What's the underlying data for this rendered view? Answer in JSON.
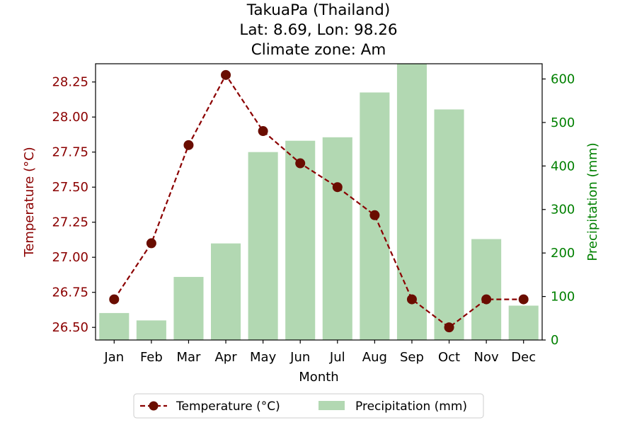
{
  "chart_data": {
    "type": "bar+line",
    "title_lines": [
      "TakuaPa (Thailand)",
      "Lat: 8.69, Lon: 98.26",
      "Climate zone: Am"
    ],
    "xlabel": "Month",
    "ylabel_left": "Temperature (°C)",
    "ylabel_right": "Precipitation (mm)",
    "categories": [
      "Jan",
      "Feb",
      "Mar",
      "Apr",
      "May",
      "Jun",
      "Jul",
      "Aug",
      "Sep",
      "Oct",
      "Nov",
      "Dec"
    ],
    "temperature": {
      "name": "Temperature (°C)",
      "values": [
        26.7,
        27.1,
        27.8,
        28.3,
        27.9,
        27.67,
        27.5,
        27.3,
        26.7,
        26.5,
        26.7,
        26.7
      ],
      "ylim": [
        26.41,
        28.38
      ],
      "ticks": [
        "26.50",
        "26.75",
        "27.00",
        "27.25",
        "27.50",
        "27.75",
        "28.00",
        "28.25"
      ],
      "line_color": "#8b0000",
      "marker_color": "#6a0d00"
    },
    "precipitation": {
      "name": "Precipitation (mm)",
      "values": [
        62,
        45,
        145,
        222,
        432,
        458,
        466,
        569,
        635,
        530,
        232,
        79
      ],
      "ylim": [
        0,
        635
      ],
      "ticks": [
        "0",
        "100",
        "200",
        "300",
        "400",
        "500",
        "600"
      ],
      "bar_color": "#b2d8b2"
    },
    "left_axis_color": "#8b0000",
    "right_axis_color": "#008000",
    "grid": false,
    "legend_position": "bottom-center"
  }
}
